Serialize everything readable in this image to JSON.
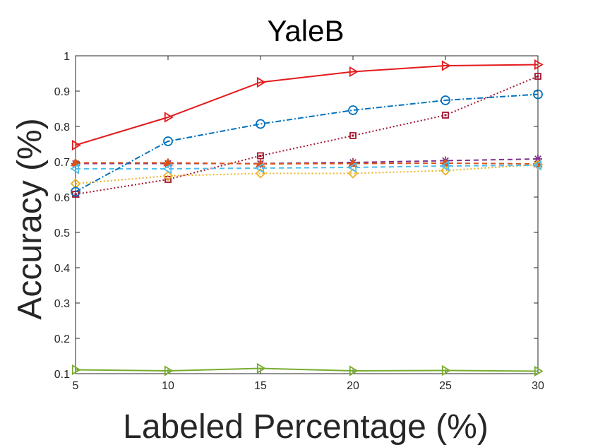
{
  "chart_data": {
    "type": "line",
    "title": "YaleB",
    "xlabel": "Labeled Percentage (%)",
    "ylabel": "Accuracy (%)",
    "x": [
      5,
      10,
      15,
      20,
      25,
      30
    ],
    "xlim": [
      5,
      30
    ],
    "ylim": [
      0.1,
      1
    ],
    "xticks": [
      "5",
      "10",
      "15",
      "20",
      "25",
      "30"
    ],
    "yticks": [
      "0.1",
      "0.2",
      "0.3",
      "0.4",
      "0.5",
      "0.6",
      "0.7",
      "0.8",
      "0.9",
      "1"
    ],
    "grid": false,
    "series": [
      {
        "color": "#7E2F8E",
        "dash": "7 5",
        "marker": "star",
        "values": [
          0.695,
          0.695,
          0.695,
          0.698,
          0.703,
          0.708
        ]
      },
      {
        "color": "#A2142F",
        "dash": "2 3",
        "marker": "square",
        "values": [
          0.608,
          0.65,
          0.717,
          0.774,
          0.832,
          0.942
        ]
      },
      {
        "color": "#D95319",
        "dash": "7 5",
        "marker": "triangle-up",
        "values": [
          0.697,
          0.697,
          0.694,
          0.695,
          0.696,
          0.694
        ]
      },
      {
        "color": "#EDB120",
        "dash": "2 3",
        "marker": "diamond",
        "values": [
          0.638,
          0.66,
          0.667,
          0.667,
          0.675,
          0.692
        ]
      },
      {
        "color": "#4DBEEE",
        "dash": "7 5",
        "marker": "triangle-left",
        "values": [
          0.68,
          0.68,
          0.682,
          0.684,
          0.688,
          0.69
        ]
      },
      {
        "color": "#0072BD",
        "dash": "8 3 2 3",
        "marker": "circle",
        "values": [
          0.615,
          0.758,
          0.807,
          0.846,
          0.874,
          0.891
        ]
      },
      {
        "color": "#77AC30",
        "dash": "",
        "marker": "triangle-right",
        "values": [
          0.111,
          0.108,
          0.115,
          0.108,
          0.109,
          0.107
        ]
      },
      {
        "color": "#E41A1C",
        "dash": "",
        "marker": "triangle-right",
        "values": [
          0.747,
          0.826,
          0.925,
          0.955,
          0.972,
          0.975
        ]
      }
    ]
  }
}
